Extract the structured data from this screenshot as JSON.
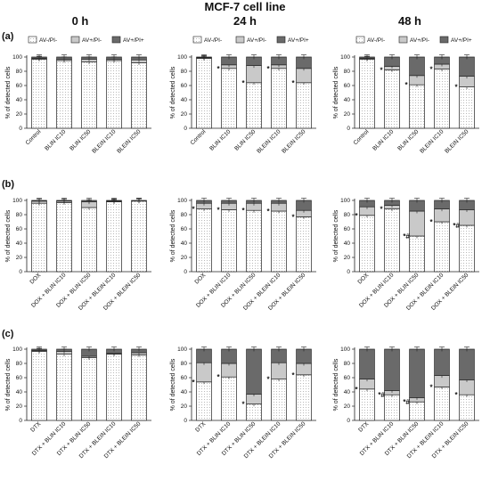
{
  "figure": {
    "title": "MCF-7 cell line",
    "columns": [
      "0 h",
      "24 h",
      "48 h"
    ],
    "rows": [
      "(a)",
      "(b)",
      "(c)"
    ],
    "ylabel": "% of detected cells",
    "legend": [
      "AV-/PI-",
      "AV+/PI-",
      "AV+/PI+"
    ],
    "colors": {
      "av_pi_neg": "#ffffff",
      "av_pos_pi_neg": "#c9c9c9",
      "av_pi_pos": "#6a6a6a",
      "stroke": "#222222"
    },
    "yticks": [
      "0",
      "20",
      "40",
      "60",
      "80",
      "100"
    ]
  },
  "chart_data": [
    {
      "type": "bar",
      "stacked": true,
      "panel": "(a)",
      "time": "0 h",
      "categories": [
        "Control",
        "BLIN IC10",
        "BLIN IC50",
        "BLEIN IC10",
        "BLEIN IC50"
      ],
      "series": [
        {
          "name": "AV-/PI-",
          "values": [
            97,
            95,
            93,
            95,
            92
          ]
        },
        {
          "name": "AV+/PI-",
          "values": [
            1,
            2,
            4,
            2,
            4
          ]
        },
        {
          "name": "AV+/PI+",
          "values": [
            2,
            3,
            3,
            3,
            4
          ]
        }
      ],
      "marks": [
        "",
        "",
        "",
        "",
        ""
      ],
      "ylim": [
        0,
        100
      ]
    },
    {
      "type": "bar",
      "stacked": true,
      "panel": "(a)",
      "time": "24 h",
      "categories": [
        "Control",
        "BLIN IC10",
        "BLIN IC50",
        "BLEIN IC10",
        "BLEIN IC50"
      ],
      "series": [
        {
          "name": "AV-/PI-",
          "values": [
            98,
            84,
            64,
            84,
            64
          ]
        },
        {
          "name": "AV+/PI-",
          "values": [
            1,
            5,
            24,
            5,
            20
          ]
        },
        {
          "name": "AV+/PI+",
          "values": [
            1,
            11,
            12,
            11,
            16
          ]
        }
      ],
      "marks": [
        "",
        "*",
        "*",
        "*",
        "*"
      ],
      "ylim": [
        0,
        100
      ]
    },
    {
      "type": "bar",
      "stacked": true,
      "panel": "(a)",
      "time": "48 h",
      "categories": [
        "Control",
        "BLIN IC10",
        "BLIN IC50",
        "BLEIN IC10",
        "BLEIN IC50"
      ],
      "series": [
        {
          "name": "AV-/PI-",
          "values": [
            97,
            82,
            61,
            83,
            58
          ]
        },
        {
          "name": "AV+/PI-",
          "values": [
            1,
            5,
            13,
            7,
            15
          ]
        },
        {
          "name": "AV+/PI+",
          "values": [
            2,
            13,
            26,
            10,
            27
          ]
        }
      ],
      "marks": [
        "",
        "*",
        "*",
        "*",
        "*"
      ],
      "ylim": [
        0,
        100
      ]
    },
    {
      "type": "bar",
      "stacked": true,
      "panel": "(b)",
      "time": "0 h",
      "categories": [
        "DOX",
        "DOX + BLIN IC10",
        "DOX + BLIN IC50",
        "DOX + BLEIN IC10",
        "DOX + BLEIN IC50"
      ],
      "series": [
        {
          "name": "AV-/PI-",
          "values": [
            96,
            97,
            90,
            98,
            99
          ]
        },
        {
          "name": "AV+/PI-",
          "values": [
            3,
            2,
            8,
            1,
            1
          ]
        },
        {
          "name": "AV+/PI+",
          "values": [
            1,
            1,
            2,
            1,
            0
          ]
        }
      ],
      "marks": [
        "",
        "",
        "",
        "",
        ""
      ],
      "ylim": [
        0,
        100
      ]
    },
    {
      "type": "bar",
      "stacked": true,
      "panel": "(b)",
      "time": "24 h",
      "categories": [
        "DOX",
        "DOX + BLIN IC10",
        "DOX + BLIN IC50",
        "DOX + BLEIN IC10",
        "DOX + BLEIN IC50"
      ],
      "series": [
        {
          "name": "AV-/PI-",
          "values": [
            88,
            87,
            86,
            85,
            77
          ]
        },
        {
          "name": "AV+/PI-",
          "values": [
            8,
            9,
            10,
            11,
            9
          ]
        },
        {
          "name": "AV+/PI+",
          "values": [
            4,
            4,
            4,
            4,
            14
          ]
        }
      ],
      "marks": [
        "*",
        "*",
        "*",
        "*",
        "*"
      ],
      "ylim": [
        0,
        100
      ]
    },
    {
      "type": "bar",
      "stacked": true,
      "panel": "(b)",
      "time": "48 h",
      "categories": [
        "DOX",
        "DOX + BLIN IC10",
        "DOX + BLIN IC50",
        "DOX + BLEIN IC10",
        "DOX + BLEIN IC50"
      ],
      "series": [
        {
          "name": "AV-/PI-",
          "values": [
            79,
            88,
            50,
            70,
            65
          ]
        },
        {
          "name": "AV+/PI-",
          "values": [
            12,
            5,
            35,
            18,
            22
          ]
        },
        {
          "name": "AV+/PI+",
          "values": [
            9,
            7,
            15,
            12,
            13
          ]
        }
      ],
      "marks": [
        "*",
        "*",
        "*#",
        "*",
        "*#"
      ],
      "ylim": [
        0,
        100
      ]
    },
    {
      "type": "bar",
      "stacked": true,
      "panel": "(c)",
      "time": "0 h",
      "categories": [
        "DTX",
        "DTX + BLIN IC10",
        "DTX + BLIN IC50",
        "DTX + BLEIN IC10",
        "DTX + BLEIN IC50"
      ],
      "series": [
        {
          "name": "AV-/PI-",
          "values": [
            97,
            93,
            88,
            93,
            92
          ]
        },
        {
          "name": "AV+/PI-",
          "values": [
            1,
            4,
            2,
            1,
            3
          ]
        },
        {
          "name": "AV+/PI+",
          "values": [
            2,
            3,
            10,
            6,
            5
          ]
        }
      ],
      "marks": [
        "",
        "",
        "",
        "",
        ""
      ],
      "ylim": [
        0,
        100
      ]
    },
    {
      "type": "bar",
      "stacked": true,
      "panel": "(c)",
      "time": "24 h",
      "categories": [
        "DTX",
        "DTX + BLIN IC10",
        "DTX + BLIN IC50",
        "DTX + BLEIN IC10",
        "DTX + BLEIN IC50"
      ],
      "series": [
        {
          "name": "AV-/PI-",
          "values": [
            54,
            61,
            23,
            58,
            64
          ]
        },
        {
          "name": "AV+/PI-",
          "values": [
            27,
            19,
            14,
            23,
            16
          ]
        },
        {
          "name": "AV+/PI+",
          "values": [
            19,
            20,
            63,
            19,
            20
          ]
        }
      ],
      "marks": [
        "*",
        "*",
        "*",
        "*",
        "*"
      ],
      "ylim": [
        0,
        100
      ]
    },
    {
      "type": "bar",
      "stacked": true,
      "panel": "(c)",
      "time": "48 h",
      "categories": [
        "DTX",
        "DTX + BLIN IC10",
        "DTX + BLIN IC50",
        "DTX + BLEIN IC10",
        "DTX + BLEIN IC50"
      ],
      "series": [
        {
          "name": "AV-/PI-",
          "values": [
            44,
            36,
            26,
            47,
            36
          ]
        },
        {
          "name": "AV+/PI-",
          "values": [
            14,
            6,
            6,
            16,
            21
          ]
        },
        {
          "name": "AV+/PI+",
          "values": [
            42,
            58,
            68,
            37,
            43
          ]
        }
      ],
      "marks": [
        "*",
        "*#",
        "*#",
        "*",
        "*"
      ],
      "ylim": [
        0,
        100
      ]
    }
  ]
}
